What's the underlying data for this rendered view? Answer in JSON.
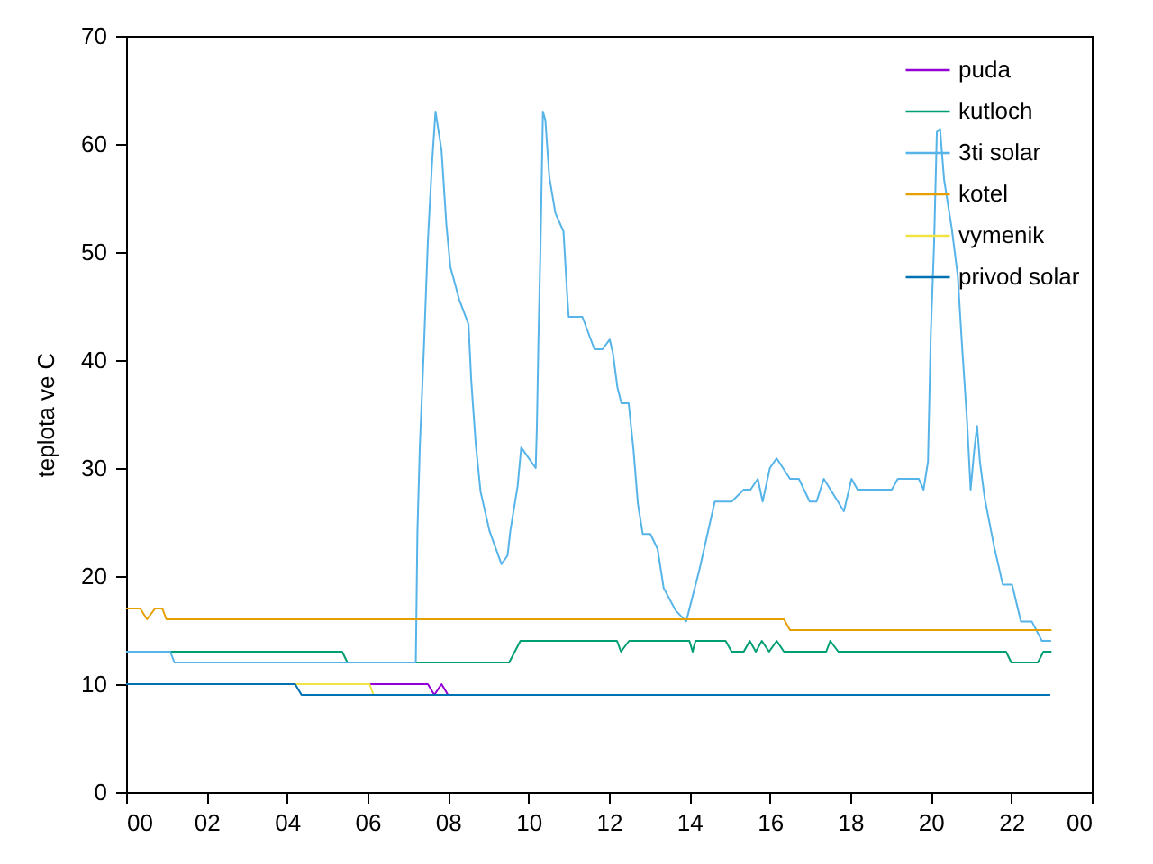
{
  "chart_data": {
    "type": "line",
    "ylabel": "teplota ve C",
    "xlim": [
      0,
      24
    ],
    "ylim": [
      0,
      70
    ],
    "xticks": [
      {
        "value": 0,
        "label": "00"
      },
      {
        "value": 2,
        "label": "02"
      },
      {
        "value": 4,
        "label": "04"
      },
      {
        "value": 6,
        "label": "06"
      },
      {
        "value": 8,
        "label": "08"
      },
      {
        "value": 10,
        "label": "10"
      },
      {
        "value": 12,
        "label": "12"
      },
      {
        "value": 14,
        "label": "14"
      },
      {
        "value": 16,
        "label": "16"
      },
      {
        "value": 18,
        "label": "18"
      },
      {
        "value": 20,
        "label": "20"
      },
      {
        "value": 22,
        "label": "22"
      },
      {
        "value": 24,
        "label": "00"
      }
    ],
    "yticks": [
      0,
      10,
      20,
      30,
      40,
      50,
      60,
      70
    ],
    "grid": false,
    "legend": "top right",
    "series": [
      {
        "name": "puda",
        "color": "#9400d3",
        "x": [
          6.05,
          7.5,
          7.66,
          7.84,
          8.0
        ],
        "values": [
          10,
          10,
          9,
          10,
          9
        ]
      },
      {
        "name": "kutloch",
        "color": "#009e73",
        "x": [
          0,
          5.37,
          5.5,
          9.52,
          9.8,
          12.2,
          12.3,
          12.5,
          14.0,
          14.08,
          14.15,
          14.9,
          15.05,
          15.35,
          15.5,
          15.65,
          15.8,
          15.98,
          16.17,
          16.35,
          17.4,
          17.5,
          17.7,
          21.87,
          22.0,
          22.66,
          22.8,
          23.0
        ],
        "values": [
          13,
          13,
          12,
          12,
          14,
          14,
          13,
          14,
          14,
          13,
          14,
          14,
          13,
          13,
          14,
          13,
          14,
          13,
          14,
          13,
          13,
          14,
          13,
          13,
          12,
          12,
          13,
          13
        ]
      },
      {
        "name": "3ti solar",
        "color": "#56b4e9",
        "x": [
          0,
          1.1,
          1.2,
          7.2,
          7.24,
          7.3,
          7.4,
          7.5,
          7.6,
          7.69,
          7.84,
          7.96,
          8.06,
          8.28,
          8.51,
          8.58,
          8.69,
          8.81,
          9.03,
          9.33,
          9.48,
          9.55,
          9.73,
          9.82,
          10.18,
          10.21,
          10.25,
          10.3,
          10.36,
          10.42,
          10.52,
          10.67,
          10.87,
          10.97,
          11.0,
          11.34,
          11.64,
          11.84,
          12.02,
          12.1,
          12.21,
          12.31,
          12.49,
          12.61,
          12.72,
          12.84,
          13.03,
          13.21,
          13.36,
          13.66,
          13.92,
          14.25,
          14.63,
          15.05,
          15.35,
          15.52,
          15.7,
          15.82,
          16.0,
          16.17,
          16.5,
          16.72,
          16.99,
          17.16,
          17.34,
          17.84,
          18.03,
          18.18,
          19.03,
          19.18,
          19.7,
          19.82,
          19.93,
          20.0,
          20.08,
          20.15,
          20.23,
          20.33,
          20.52,
          20.67,
          20.78,
          20.9,
          20.99,
          21.08,
          21.15,
          21.22,
          21.34,
          21.57,
          21.79,
          22.02,
          22.24,
          22.51,
          22.76,
          22.99
        ],
        "values": [
          13,
          13,
          12,
          12,
          24,
          32,
          41,
          51,
          58,
          63,
          59.4,
          52.5,
          48.6,
          45.6,
          43.3,
          38,
          32.2,
          27.8,
          24.2,
          21.1,
          21.9,
          24.2,
          28.3,
          31.9,
          30,
          33.9,
          42.2,
          50.6,
          63,
          62.2,
          56.9,
          53.6,
          51.9,
          45.6,
          44,
          44,
          41,
          41,
          41.9,
          40.6,
          37.5,
          36,
          36,
          31.7,
          26.7,
          23.9,
          23.9,
          22.5,
          18.9,
          16.8,
          15.8,
          20.6,
          26.9,
          26.9,
          28,
          28,
          29,
          26.9,
          30,
          30.9,
          29,
          29,
          26.9,
          26.9,
          29,
          26,
          29,
          28,
          28,
          29,
          29,
          28,
          30.6,
          42.5,
          50.6,
          61.1,
          61.4,
          56.7,
          52.2,
          47.8,
          41.1,
          34.4,
          28,
          31.7,
          33.9,
          30.6,
          27.2,
          22.8,
          19.2,
          19.2,
          15.8,
          15.8,
          14,
          14
        ]
      },
      {
        "name": "kotel",
        "color": "#e69f00",
        "x": [
          0,
          0.35,
          0.52,
          0.72,
          0.9,
          1.0,
          16.35,
          16.5,
          23.0
        ],
        "values": [
          17,
          17,
          16,
          17,
          17,
          16,
          16,
          15,
          15
        ]
      },
      {
        "name": "vymenik",
        "color": "#f0e442",
        "x": [
          4.2,
          6.05,
          6.15
        ],
        "values": [
          10,
          10,
          9
        ]
      },
      {
        "name": "privod solar",
        "color": "#0072b2",
        "x": [
          0,
          4.2,
          4.36,
          22.97
        ],
        "values": [
          10,
          10,
          9,
          9
        ]
      }
    ]
  }
}
